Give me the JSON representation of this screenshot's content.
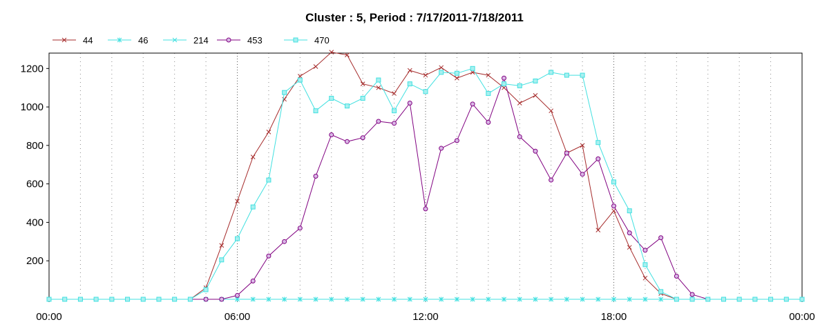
{
  "chart_data": {
    "type": "line",
    "title": "Cluster : 5, Period : 7/17/2011-7/18/2011",
    "xlabel": "",
    "ylabel": "",
    "x_tick_labels": [
      "00:00",
      "06:00",
      "12:00",
      "18:00",
      "00:00"
    ],
    "y_ticks": [
      200,
      400,
      600,
      800,
      1000,
      1200
    ],
    "xlim": [
      0,
      24
    ],
    "ylim": [
      0,
      1280
    ],
    "grid": "dotted vertical, every 30 min; major at 6h",
    "legend_position": "top-left",
    "x": [
      0,
      0.5,
      1,
      1.5,
      2,
      2.5,
      3,
      3.5,
      4,
      4.5,
      5,
      5.5,
      6,
      6.5,
      7,
      7.5,
      8,
      8.5,
      9,
      9.5,
      10,
      10.5,
      11,
      11.5,
      12,
      12.5,
      13,
      13.5,
      14,
      14.5,
      15,
      15.5,
      16,
      16.5,
      17,
      17.5,
      18,
      18.5,
      19,
      19.5,
      20,
      20.5,
      21,
      21.5,
      22,
      22.5,
      23,
      23.5,
      24
    ],
    "series": [
      {
        "name": "44",
        "color": "#a52a2a",
        "marker": "x",
        "values": [
          0,
          0,
          0,
          0,
          0,
          0,
          0,
          0,
          0,
          0,
          60,
          280,
          510,
          740,
          870,
          1040,
          1160,
          1210,
          1285,
          1270,
          1120,
          1100,
          1070,
          1190,
          1165,
          1205,
          1150,
          1180,
          1165,
          1100,
          1020,
          1060,
          980,
          760,
          800,
          360,
          460,
          270,
          110,
          30,
          0,
          0,
          0,
          0,
          0,
          0,
          0,
          0,
          0
        ]
      },
      {
        "name": "46",
        "color": "#40e0e0",
        "marker": "asterisk",
        "values": [
          0,
          0,
          0,
          0,
          0,
          0,
          0,
          0,
          0,
          0,
          0,
          0,
          0,
          0,
          0,
          0,
          0,
          0,
          0,
          0,
          0,
          0,
          0,
          0,
          0,
          0,
          0,
          0,
          0,
          0,
          0,
          0,
          0,
          0,
          0,
          0,
          0,
          0,
          0,
          0,
          0,
          0,
          0,
          0,
          0,
          0,
          0,
          0,
          0
        ]
      },
      {
        "name": "214",
        "color": "#40e0e0",
        "marker": "x",
        "values": [
          0,
          0,
          0,
          0,
          0,
          0,
          0,
          0,
          0,
          0,
          0,
          0,
          0,
          0,
          0,
          0,
          0,
          0,
          0,
          0,
          0,
          0,
          0,
          0,
          0,
          0,
          0,
          0,
          0,
          0,
          0,
          0,
          0,
          0,
          0,
          0,
          0,
          0,
          0,
          0,
          0,
          0,
          0,
          0,
          0,
          0,
          0,
          0,
          0
        ]
      },
      {
        "name": "453",
        "color": "#800080",
        "marker": "circle",
        "values": [
          0,
          0,
          0,
          0,
          0,
          0,
          0,
          0,
          0,
          0,
          0,
          0,
          20,
          95,
          225,
          300,
          370,
          640,
          855,
          820,
          840,
          925,
          915,
          1020,
          470,
          785,
          825,
          1015,
          920,
          1150,
          845,
          770,
          620,
          760,
          650,
          730,
          485,
          345,
          255,
          320,
          120,
          25,
          0,
          0,
          0,
          0,
          0,
          0,
          0
        ]
      },
      {
        "name": "470",
        "color": "#40e0e0",
        "marker": "square",
        "values": [
          0,
          0,
          0,
          0,
          0,
          0,
          0,
          0,
          0,
          0,
          50,
          205,
          315,
          480,
          620,
          1075,
          1140,
          980,
          1045,
          1005,
          1045,
          1140,
          980,
          1120,
          1080,
          1180,
          1175,
          1200,
          1070,
          1120,
          1110,
          1135,
          1180,
          1165,
          1165,
          815,
          610,
          460,
          180,
          40,
          0,
          0,
          0,
          0,
          0,
          0,
          0,
          0,
          0
        ]
      }
    ]
  }
}
